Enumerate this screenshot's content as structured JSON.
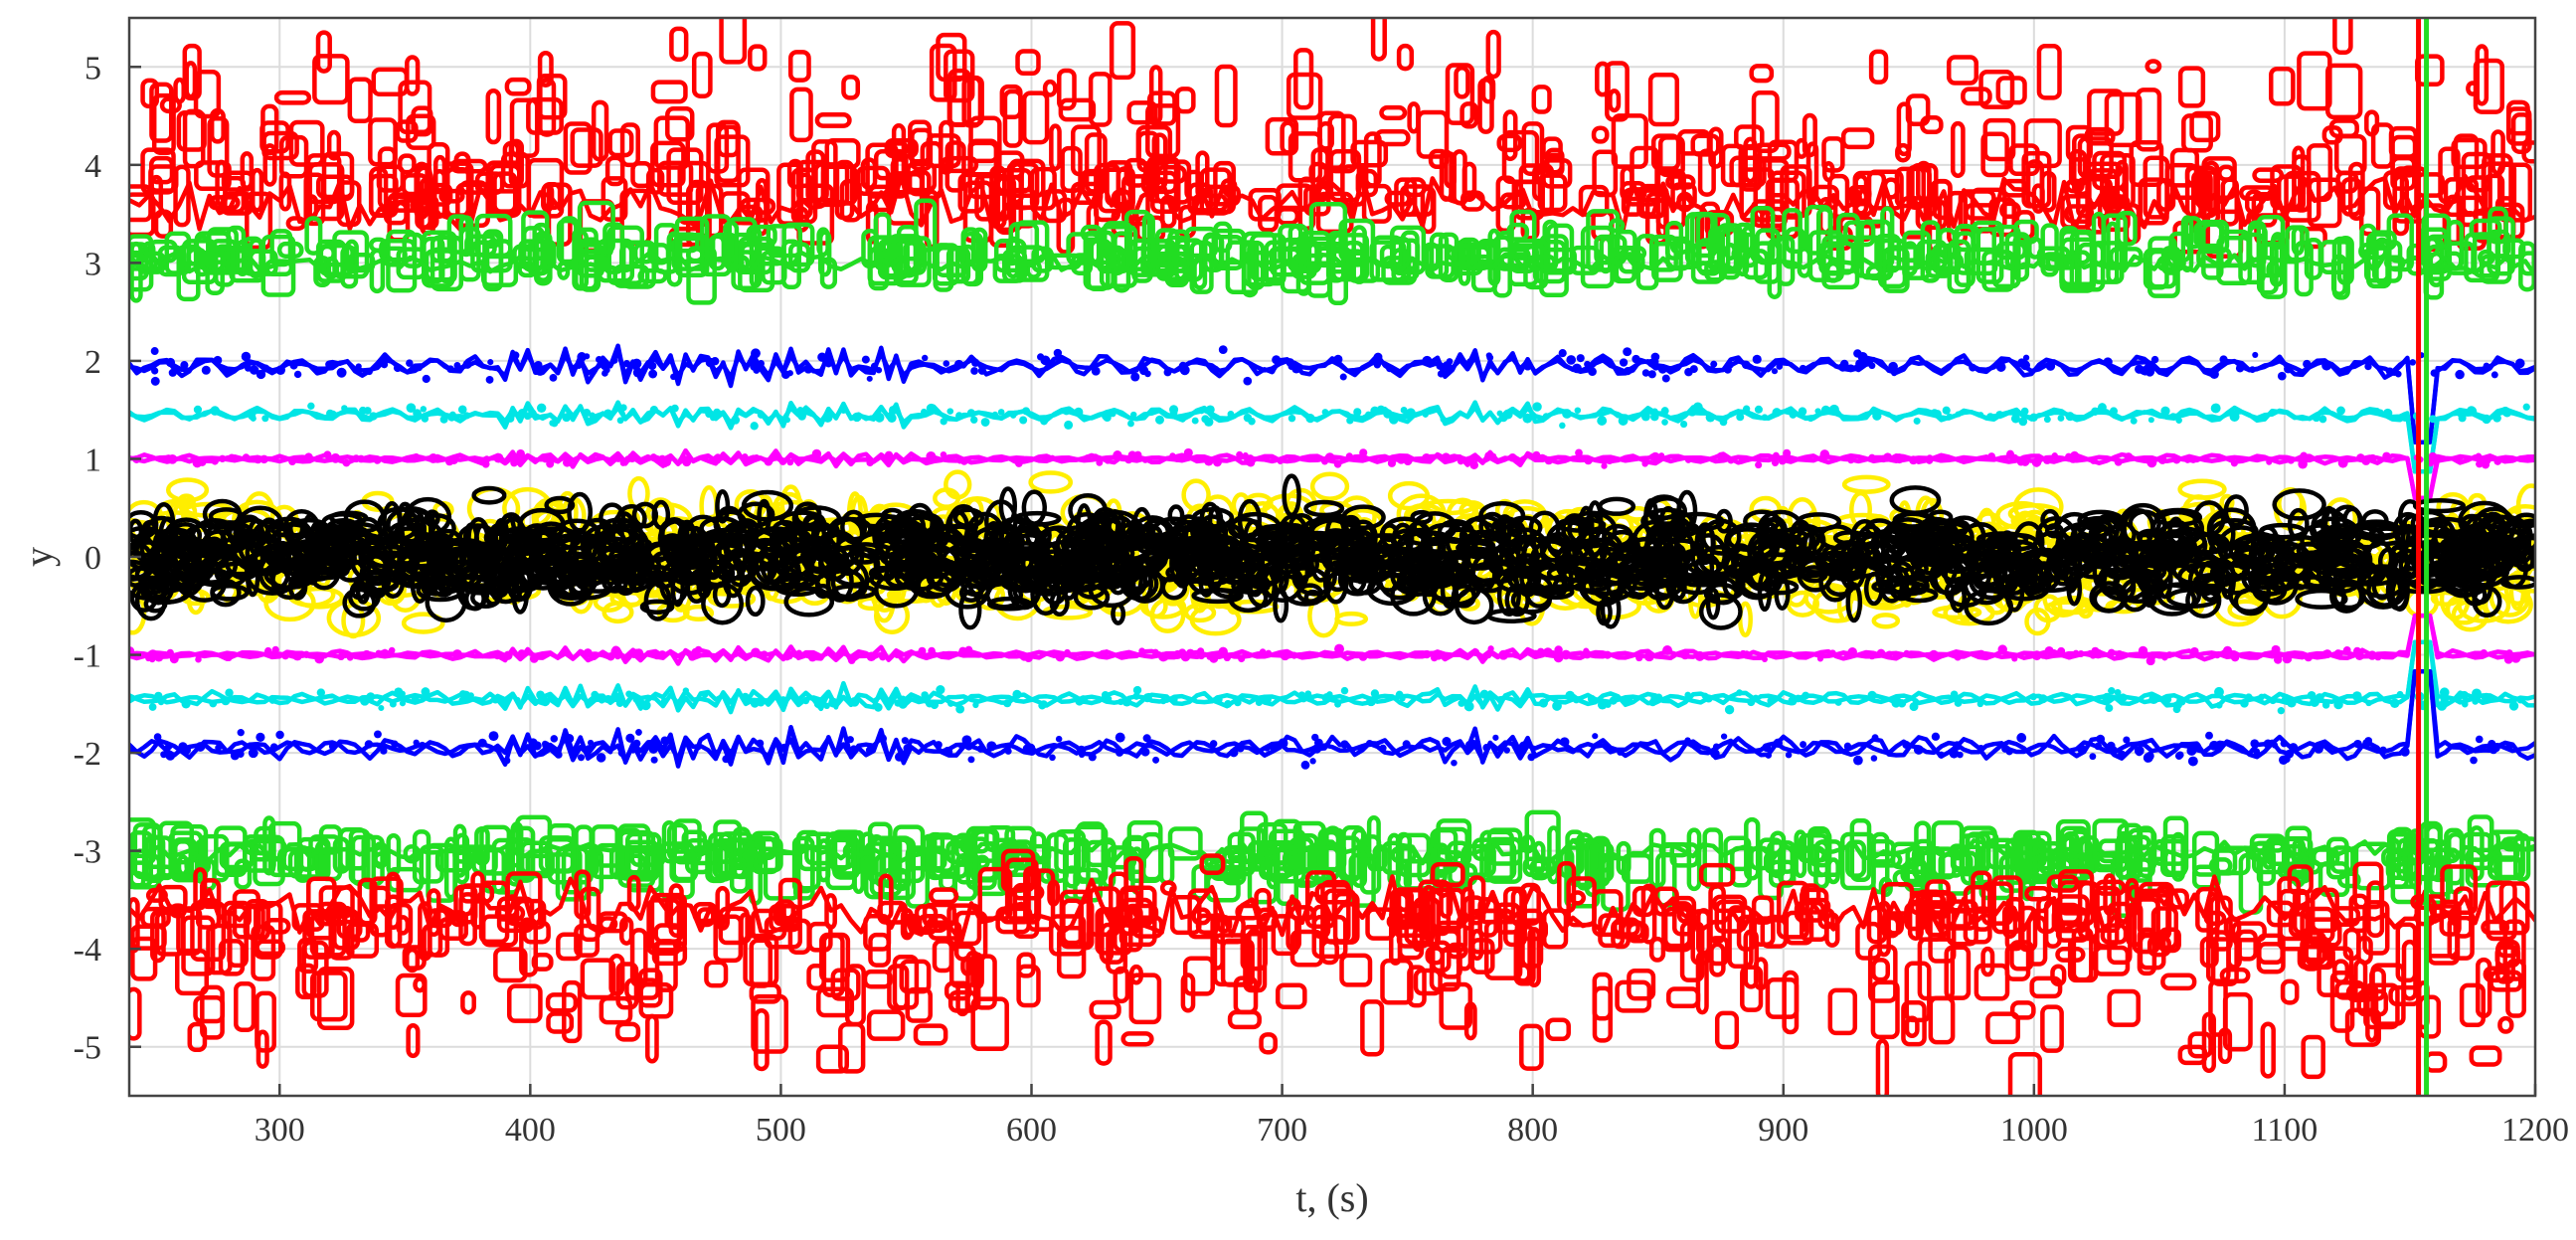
{
  "chart_data": {
    "type": "line",
    "title": "",
    "xlabel": "t, (s)",
    "ylabel": "y",
    "xlim": [
      240,
      1200
    ],
    "ylim": [
      -5.5,
      5.5
    ],
    "grid": true,
    "x_ticks": [
      300,
      400,
      500,
      600,
      700,
      800,
      900,
      1000,
      1100,
      1200
    ],
    "y_ticks": [
      -5,
      -4,
      -3,
      -2,
      -1,
      0,
      1,
      2,
      3,
      4,
      5
    ],
    "x_tick_labels": [
      "300",
      "400",
      "500",
      "600",
      "700",
      "800",
      "900",
      "1000",
      "1100",
      "1200"
    ],
    "y_tick_labels": [
      "-5",
      "-4",
      "-3",
      "-2",
      "-1",
      "0",
      "1",
      "2",
      "3",
      "4",
      "5"
    ],
    "series": [
      {
        "name": "red-upper",
        "color": "#ff0000",
        "level": 3.6,
        "spread": 1.6,
        "density": "scattered"
      },
      {
        "name": "green-upper",
        "color": "#22dd22",
        "level": 3.0,
        "spread": 0.6,
        "density": "scattered"
      },
      {
        "name": "blue-upper",
        "color": "#0000ff",
        "level": 1.95,
        "spread": 0.15,
        "density": "line"
      },
      {
        "name": "cyan-upper",
        "color": "#00e5e5",
        "level": 1.45,
        "spread": 0.1,
        "density": "line"
      },
      {
        "name": "magenta-upper",
        "color": "#ff00ff",
        "level": 1.0,
        "spread": 0.06,
        "density": "line"
      },
      {
        "name": "yellow-band",
        "color": "#ffee00",
        "level": 0.0,
        "spread": 0.85,
        "density": "dense"
      },
      {
        "name": "black-core",
        "color": "#000000",
        "level": 0.0,
        "spread": 0.65,
        "density": "dense"
      },
      {
        "name": "magenta-lower",
        "color": "#ff00ff",
        "level": -1.0,
        "spread": 0.06,
        "density": "line"
      },
      {
        "name": "cyan-lower",
        "color": "#00e5e5",
        "level": -1.45,
        "spread": 0.1,
        "density": "line"
      },
      {
        "name": "blue-lower",
        "color": "#0000ff",
        "level": -1.95,
        "spread": 0.15,
        "density": "line"
      },
      {
        "name": "green-lower",
        "color": "#22dd22",
        "level": -3.0,
        "spread": 0.6,
        "density": "scattered"
      },
      {
        "name": "red-lower",
        "color": "#ff0000",
        "level": -3.6,
        "spread": 1.6,
        "density": "scattered"
      }
    ],
    "annotations": [
      {
        "text": "",
        "x": 1155,
        "note": "vertical disturbance"
      }
    ]
  }
}
